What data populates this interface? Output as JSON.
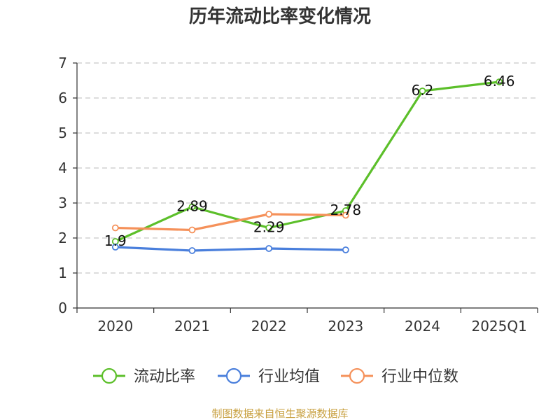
{
  "chart_data": {
    "type": "line",
    "title": "历年流动比率变化情况",
    "categories": [
      "2020",
      "2021",
      "2022",
      "2023",
      "2024",
      "2025Q1"
    ],
    "ylim": [
      0,
      7
    ],
    "yticks": [
      0,
      1,
      2,
      3,
      4,
      5,
      6,
      7
    ],
    "grid": true,
    "legend_position": "bottom",
    "series": [
      {
        "name": "流动比率",
        "color": "#5cbf2a",
        "values": [
          1.9,
          2.89,
          2.29,
          2.78,
          6.2,
          6.46
        ],
        "labels": [
          "1.9",
          "2.89",
          "2.29",
          "2.78",
          "6.2",
          "6.46"
        ]
      },
      {
        "name": "行业均值",
        "color": "#4a7fdc",
        "values": [
          1.74,
          1.64,
          1.7,
          1.66,
          null,
          null
        ]
      },
      {
        "name": "行业中位数",
        "color": "#f5915a",
        "values": [
          2.29,
          2.23,
          2.68,
          2.65,
          null,
          null
        ]
      }
    ],
    "source": "制图数据来自恒生聚源数据库"
  }
}
